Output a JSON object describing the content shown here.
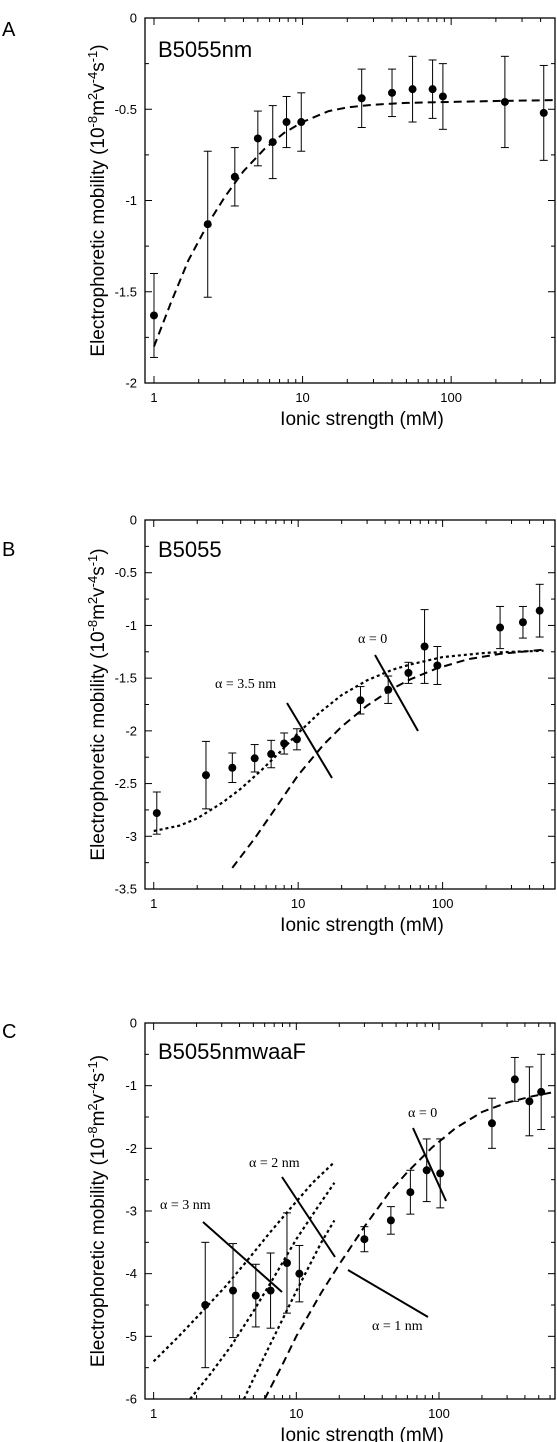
{
  "chart_data": [
    {
      "type": "scatter",
      "panel_label": "A",
      "title": "B5055nm",
      "xlabel": "Ionic strength (mM)",
      "ylabel": "Electrophoretic mobility (10",
      "ylabel_sup1": "-8",
      "ylabel_mid": "m",
      "ylabel_sup2": "2",
      "ylabel_mid2": "v",
      "ylabel_sup3": "-4",
      "ylabel_mid3": "s",
      "ylabel_sup4": "-1",
      "ylabel_end": ")",
      "x_scale": "log",
      "xlim": [
        0.87,
        500
      ],
      "ylim": [
        -2,
        0
      ],
      "x_ticks": [
        1,
        10,
        100
      ],
      "x_tick_labels": [
        "1",
        "10",
        "100"
      ],
      "y_ticks": [
        -2,
        -1.5,
        -1,
        -0.5,
        0
      ],
      "y_tick_labels": [
        "-2",
        "-1.5",
        "-1",
        "-0.5",
        "0"
      ],
      "points": [
        {
          "x": 1.0,
          "y": -1.63,
          "err_low": 0.23,
          "err_high": 0.23
        },
        {
          "x": 2.3,
          "y": -1.13,
          "err_low": 0.4,
          "err_high": 0.4
        },
        {
          "x": 3.5,
          "y": -0.87,
          "err_low": 0.16,
          "err_high": 0.16
        },
        {
          "x": 5.0,
          "y": -0.66,
          "err_low": 0.15,
          "err_high": 0.15
        },
        {
          "x": 6.3,
          "y": -0.68,
          "err_low": 0.2,
          "err_high": 0.2
        },
        {
          "x": 7.8,
          "y": -0.57,
          "err_low": 0.14,
          "err_high": 0.14
        },
        {
          "x": 9.8,
          "y": -0.57,
          "err_low": 0.16,
          "err_high": 0.16
        },
        {
          "x": 25,
          "y": -0.44,
          "err_low": 0.16,
          "err_high": 0.16
        },
        {
          "x": 40,
          "y": -0.41,
          "err_low": 0.13,
          "err_high": 0.13
        },
        {
          "x": 55,
          "y": -0.39,
          "err_low": 0.18,
          "err_high": 0.18
        },
        {
          "x": 75,
          "y": -0.39,
          "err_low": 0.16,
          "err_high": 0.16
        },
        {
          "x": 88,
          "y": -0.43,
          "err_low": 0.18,
          "err_high": 0.18
        },
        {
          "x": 230,
          "y": -0.46,
          "err_low": 0.25,
          "err_high": 0.25
        },
        {
          "x": 420,
          "y": -0.52,
          "err_low": 0.26,
          "err_high": 0.26
        }
      ],
      "curves": [
        {
          "style": "dashed",
          "x": [
            1.0,
            1.3,
            1.7,
            2.3,
            3.0,
            4.0,
            5.5,
            7.5,
            10,
            15,
            20,
            30,
            50,
            100,
            200,
            500
          ],
          "y": [
            -1.8,
            -1.56,
            -1.33,
            -1.13,
            -0.98,
            -0.84,
            -0.72,
            -0.63,
            -0.57,
            -0.51,
            -0.49,
            -0.475,
            -0.465,
            -0.46,
            -0.455,
            -0.45
          ]
        }
      ],
      "annotations": []
    },
    {
      "type": "scatter",
      "panel_label": "B",
      "title": "B5055",
      "xlabel": "Ionic strength (mM)",
      "ylabel": "Electrophoretic mobility (10",
      "ylabel_sup1": "-8",
      "ylabel_mid": "m",
      "ylabel_sup2": "2",
      "ylabel_mid2": "v",
      "ylabel_sup3": "-4",
      "ylabel_mid3": "s",
      "ylabel_sup4": "-1",
      "ylabel_end": ")",
      "x_scale": "log",
      "xlim": [
        0.87,
        600
      ],
      "ylim": [
        -3.5,
        0
      ],
      "x_ticks": [
        1,
        10,
        100
      ],
      "x_tick_labels": [
        "1",
        "10",
        "100"
      ],
      "y_ticks": [
        -3.5,
        -3,
        -2.5,
        -2,
        -1.5,
        -1,
        -0.5,
        0
      ],
      "y_tick_labels": [
        "-3.5",
        "-3",
        "-2.5",
        "-2",
        "-1.5",
        "-1",
        "-0.5",
        "0"
      ],
      "points": [
        {
          "x": 1.05,
          "y": -2.78,
          "err_low": 0.2,
          "err_high": 0.2
        },
        {
          "x": 2.3,
          "y": -2.42,
          "err_low": 0.32,
          "err_high": 0.32
        },
        {
          "x": 3.5,
          "y": -2.35,
          "err_low": 0.14,
          "err_high": 0.14
        },
        {
          "x": 5.0,
          "y": -2.26,
          "err_low": 0.13,
          "err_high": 0.13
        },
        {
          "x": 6.5,
          "y": -2.22,
          "err_low": 0.13,
          "err_high": 0.13
        },
        {
          "x": 8.0,
          "y": -2.12,
          "err_low": 0.1,
          "err_high": 0.1
        },
        {
          "x": 9.8,
          "y": -2.08,
          "err_low": 0.1,
          "err_high": 0.1
        },
        {
          "x": 27,
          "y": -1.71,
          "err_low": 0.13,
          "err_high": 0.13
        },
        {
          "x": 42,
          "y": -1.61,
          "err_low": 0.13,
          "err_high": 0.13
        },
        {
          "x": 58,
          "y": -1.45,
          "err_low": 0.1,
          "err_high": 0.1
        },
        {
          "x": 75,
          "y": -1.2,
          "err_low": 0.35,
          "err_high": 0.35
        },
        {
          "x": 92,
          "y": -1.38,
          "err_low": 0.18,
          "err_high": 0.18
        },
        {
          "x": 250,
          "y": -1.02,
          "err_low": 0.2,
          "err_high": 0.2
        },
        {
          "x": 360,
          "y": -0.97,
          "err_low": 0.15,
          "err_high": 0.15
        },
        {
          "x": 470,
          "y": -0.86,
          "err_low": 0.25,
          "err_high": 0.25
        }
      ],
      "curves": [
        {
          "label": "α = 0",
          "style": "dashed",
          "x": [
            3.5,
            5,
            7,
            10,
            15,
            20,
            30,
            45,
            60,
            90,
            150,
            250,
            500
          ],
          "y": [
            -3.3,
            -3.02,
            -2.73,
            -2.42,
            -2.13,
            -1.96,
            -1.76,
            -1.6,
            -1.51,
            -1.41,
            -1.32,
            -1.27,
            -1.23
          ]
        },
        {
          "label": "α = 3.5 nm",
          "style": "dotted",
          "x": [
            1.0,
            1.5,
            2.0,
            3.0,
            4.0,
            5.5,
            7.5,
            10,
            14,
            20,
            30,
            45,
            60,
            100,
            200,
            500
          ],
          "y": [
            -2.95,
            -2.9,
            -2.83,
            -2.68,
            -2.55,
            -2.38,
            -2.2,
            -2.02,
            -1.83,
            -1.66,
            -1.52,
            -1.42,
            -1.37,
            -1.3,
            -1.26,
            -1.24
          ]
        }
      ],
      "annotations": [
        {
          "text": "α = 0",
          "target_curve": 0
        },
        {
          "text": "α = 3.5 nm",
          "target_curve": 1
        }
      ]
    },
    {
      "type": "scatter",
      "panel_label": "C",
      "title": "B5055nmwaaF",
      "xlabel": "Ionic strength (mM)",
      "ylabel": "Electrophoretic mobility (10",
      "ylabel_sup1": "-8",
      "ylabel_mid": "m",
      "ylabel_sup2": "2",
      "ylabel_mid2": "v",
      "ylabel_sup3": "-4",
      "ylabel_mid3": "s",
      "ylabel_sup4": "-1",
      "ylabel_end": ")",
      "x_scale": "log",
      "xlim": [
        0.87,
        650
      ],
      "ylim": [
        -6,
        0
      ],
      "x_ticks": [
        1,
        10,
        100
      ],
      "x_tick_labels": [
        "1",
        "10",
        "100"
      ],
      "y_ticks": [
        -6,
        -5,
        -4,
        -3,
        -2,
        -1,
        0
      ],
      "y_tick_labels": [
        "-6",
        "-5",
        "-4",
        "-3",
        "-2",
        "-1",
        "0"
      ],
      "points": [
        {
          "x": 2.3,
          "y": -4.5,
          "err_low": 1.0,
          "err_high": 1.0
        },
        {
          "x": 3.6,
          "y": -4.27,
          "err_low": 0.75,
          "err_high": 0.75
        },
        {
          "x": 5.2,
          "y": -4.35,
          "err_low": 0.5,
          "err_high": 0.5
        },
        {
          "x": 6.6,
          "y": -4.27,
          "err_low": 0.6,
          "err_high": 0.6
        },
        {
          "x": 8.6,
          "y": -3.83,
          "err_low": 0.8,
          "err_high": 0.8
        },
        {
          "x": 10.5,
          "y": -4.0,
          "err_low": 0.45,
          "err_high": 0.45
        },
        {
          "x": 30,
          "y": -3.45,
          "err_low": 0.2,
          "err_high": 0.2
        },
        {
          "x": 46,
          "y": -3.15,
          "err_low": 0.22,
          "err_high": 0.22
        },
        {
          "x": 63,
          "y": -2.7,
          "err_low": 0.35,
          "err_high": 0.35
        },
        {
          "x": 82,
          "y": -2.35,
          "err_low": 0.5,
          "err_high": 0.5
        },
        {
          "x": 102,
          "y": -2.4,
          "err_low": 0.55,
          "err_high": 0.55
        },
        {
          "x": 235,
          "y": -1.6,
          "err_low": 0.4,
          "err_high": 0.4
        },
        {
          "x": 340,
          "y": -0.9,
          "err_low": 0.35,
          "err_high": 0.35
        },
        {
          "x": 430,
          "y": -1.25,
          "err_low": 0.55,
          "err_high": 0.55
        },
        {
          "x": 520,
          "y": -1.1,
          "err_low": 0.6,
          "err_high": 0.6
        }
      ],
      "curves": [
        {
          "label": "α = 0",
          "style": "dashed",
          "x": [
            6,
            8,
            10,
            15,
            20,
            30,
            45,
            60,
            90,
            130,
            200,
            300,
            450,
            650
          ],
          "y": [
            -6.0,
            -5.45,
            -5.0,
            -4.3,
            -3.85,
            -3.25,
            -2.7,
            -2.38,
            -1.98,
            -1.68,
            -1.42,
            -1.27,
            -1.17,
            -1.1
          ]
        },
        {
          "label": "α = 1 nm",
          "style": "dotted",
          "x": [
            4.3,
            5,
            6.5,
            8,
            10,
            12.5,
            15,
            18.5
          ],
          "y": [
            -6.0,
            -5.68,
            -5.15,
            -4.73,
            -4.28,
            -3.85,
            -3.5,
            -3.15
          ]
        },
        {
          "label": "α = 2 nm",
          "style": "dotted",
          "x": [
            1.8,
            2.5,
            3.5,
            5,
            7,
            10,
            14,
            18.5
          ],
          "y": [
            -6.0,
            -5.6,
            -5.15,
            -4.6,
            -4.05,
            -3.45,
            -2.95,
            -2.55
          ]
        },
        {
          "label": "α = 3 nm",
          "style": "dotted",
          "x": [
            1.0,
            1.5,
            2.2,
            3.2,
            4.5,
            6.5,
            9,
            13,
            18.5
          ],
          "y": [
            -5.4,
            -5.0,
            -4.6,
            -4.2,
            -3.8,
            -3.35,
            -2.97,
            -2.55,
            -2.22
          ]
        }
      ],
      "annotations": [
        {
          "text": "α = 0",
          "target_curve": 0
        },
        {
          "text": "α = 1 nm",
          "target_curve": 1
        },
        {
          "text": "α = 2 nm",
          "target_curve": 2
        },
        {
          "text": "α = 3 nm",
          "target_curve": 3
        }
      ]
    }
  ]
}
